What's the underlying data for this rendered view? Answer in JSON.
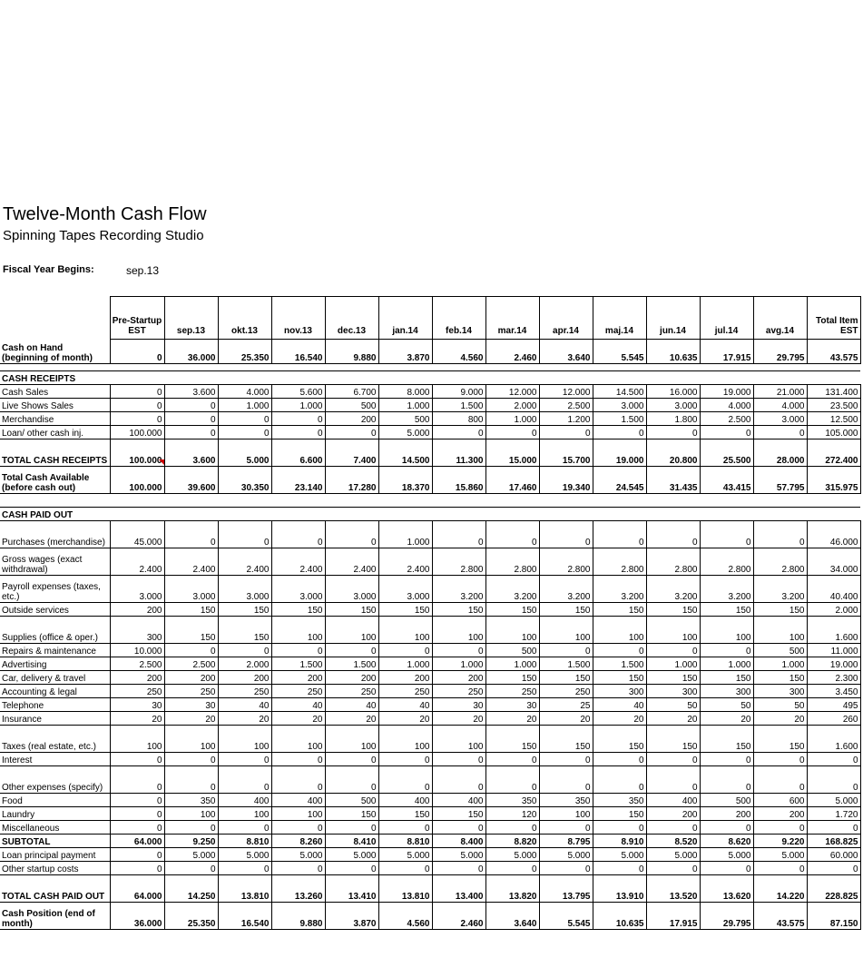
{
  "title": "Twelve-Month Cash Flow",
  "subtitle": "Spinning Tapes Recording Studio",
  "fiscal_year": {
    "label": "Fiscal Year Begins:",
    "value": "sep.13"
  },
  "columns": [
    "Pre-Startup EST",
    "sep.13",
    "okt.13",
    "nov.13",
    "dec.13",
    "jan.14",
    "feb.14",
    "mar.14",
    "apr.14",
    "maj.14",
    "jun.14",
    "jul.14",
    "avg.14",
    "Total Item EST"
  ],
  "rows": [
    {
      "type": "row",
      "label": "Cash on Hand (beginning of month)",
      "bold": true,
      "h": 27,
      "values": [
        "0",
        "36.000",
        "25.350",
        "16.540",
        "9.880",
        "3.870",
        "4.560",
        "2.460",
        "3.640",
        "5.545",
        "10.635",
        "17.915",
        "29.795",
        "43.575"
      ]
    },
    {
      "type": "blank",
      "h": 8
    },
    {
      "type": "section",
      "label": "CASH RECEIPTS",
      "h": 15
    },
    {
      "type": "row",
      "label": "Cash Sales",
      "h": 15,
      "values": [
        "0",
        "3.600",
        "4.000",
        "5.600",
        "6.700",
        "8.000",
        "9.000",
        "12.000",
        "12.000",
        "14.500",
        "16.000",
        "19.000",
        "21.000",
        "131.400"
      ]
    },
    {
      "type": "row",
      "label": "Live Shows Sales",
      "h": 15,
      "values": [
        "0",
        "0",
        "1.000",
        "1.000",
        "500",
        "1.000",
        "1.500",
        "2.000",
        "2.500",
        "3.000",
        "3.000",
        "4.000",
        "4.000",
        "23.500"
      ]
    },
    {
      "type": "row",
      "label": "Merchandise",
      "h": 15,
      "values": [
        "0",
        "0",
        "0",
        "0",
        "200",
        "500",
        "800",
        "1.000",
        "1.200",
        "1.500",
        "1.800",
        "2.500",
        "3.000",
        "12.500"
      ]
    },
    {
      "type": "row",
      "label": "Loan/ other cash inj.",
      "h": 15,
      "values": [
        "100.000",
        "0",
        "0",
        "0",
        "0",
        "5.000",
        "0",
        "0",
        "0",
        "0",
        "0",
        "0",
        "0",
        "105.000"
      ]
    },
    {
      "type": "row",
      "label": "TOTAL CASH RECEIPTS",
      "bold": true,
      "h": 30,
      "values": [
        "100.000",
        "3.600",
        "5.000",
        "6.600",
        "7.400",
        "14.500",
        "11.300",
        "15.000",
        "15.700",
        "19.000",
        "20.800",
        "25.500",
        "28.000",
        "272.400"
      ]
    },
    {
      "type": "row",
      "label": "Total Cash Available (before cash out)",
      "bold": true,
      "h": 30,
      "values": [
        "100.000",
        "39.600",
        "30.350",
        "23.140",
        "17.280",
        "18.370",
        "15.860",
        "17.460",
        "19.340",
        "24.545",
        "31.435",
        "43.415",
        "57.795",
        "315.975"
      ]
    },
    {
      "type": "blank",
      "h": 15
    },
    {
      "type": "section",
      "label": "CASH PAID OUT",
      "h": 15
    },
    {
      "type": "row",
      "label": "Purchases (merchandise)",
      "h": 30,
      "values": [
        "45.000",
        "0",
        "0",
        "0",
        "0",
        "1.000",
        "0",
        "0",
        "0",
        "0",
        "0",
        "0",
        "0",
        "46.000"
      ]
    },
    {
      "type": "row",
      "label": "Gross wages (exact withdrawal)",
      "h": 30,
      "values": [
        "2.400",
        "2.400",
        "2.400",
        "2.400",
        "2.400",
        "2.400",
        "2.800",
        "2.800",
        "2.800",
        "2.800",
        "2.800",
        "2.800",
        "2.800",
        "34.000"
      ]
    },
    {
      "type": "row",
      "label": "Payroll expenses (taxes, etc.)",
      "h": 30,
      "values": [
        "3.000",
        "3.000",
        "3.000",
        "3.000",
        "3.000",
        "3.000",
        "3.200",
        "3.200",
        "3.200",
        "3.200",
        "3.200",
        "3.200",
        "3.200",
        "40.400"
      ]
    },
    {
      "type": "row",
      "label": "Outside services",
      "h": 15,
      "values": [
        "200",
        "150",
        "150",
        "150",
        "150",
        "150",
        "150",
        "150",
        "150",
        "150",
        "150",
        "150",
        "150",
        "2.000"
      ]
    },
    {
      "type": "row",
      "label": "Supplies (office & oper.)",
      "h": 30,
      "values": [
        "300",
        "150",
        "150",
        "100",
        "100",
        "100",
        "100",
        "100",
        "100",
        "100",
        "100",
        "100",
        "100",
        "1.600"
      ]
    },
    {
      "type": "row",
      "label": "Repairs & maintenance",
      "h": 15,
      "values": [
        "10.000",
        "0",
        "0",
        "0",
        "0",
        "0",
        "0",
        "500",
        "0",
        "0",
        "0",
        "0",
        "500",
        "11.000"
      ]
    },
    {
      "type": "row",
      "label": "Advertising",
      "h": 15,
      "values": [
        "2.500",
        "2.500",
        "2.000",
        "1.500",
        "1.500",
        "1.000",
        "1.000",
        "1.000",
        "1.500",
        "1.500",
        "1.000",
        "1.000",
        "1.000",
        "19.000"
      ]
    },
    {
      "type": "row",
      "label": "Car, delivery & travel",
      "h": 15,
      "values": [
        "200",
        "200",
        "200",
        "200",
        "200",
        "200",
        "200",
        "150",
        "150",
        "150",
        "150",
        "150",
        "150",
        "2.300"
      ]
    },
    {
      "type": "row",
      "label": "Accounting & legal",
      "h": 15,
      "values": [
        "250",
        "250",
        "250",
        "250",
        "250",
        "250",
        "250",
        "250",
        "250",
        "300",
        "300",
        "300",
        "300",
        "3.450"
      ]
    },
    {
      "type": "row",
      "label": "Telephone",
      "h": 15,
      "values": [
        "30",
        "30",
        "40",
        "40",
        "40",
        "40",
        "30",
        "30",
        "25",
        "40",
        "50",
        "50",
        "50",
        "495"
      ]
    },
    {
      "type": "row",
      "label": "Insurance",
      "h": 15,
      "values": [
        "20",
        "20",
        "20",
        "20",
        "20",
        "20",
        "20",
        "20",
        "20",
        "20",
        "20",
        "20",
        "20",
        "260"
      ]
    },
    {
      "type": "row",
      "label": "Taxes (real estate, etc.)",
      "h": 30,
      "values": [
        "100",
        "100",
        "100",
        "100",
        "100",
        "100",
        "100",
        "150",
        "150",
        "150",
        "150",
        "150",
        "150",
        "1.600"
      ]
    },
    {
      "type": "row",
      "label": "Interest",
      "h": 15,
      "values": [
        "0",
        "0",
        "0",
        "0",
        "0",
        "0",
        "0",
        "0",
        "0",
        "0",
        "0",
        "0",
        "0",
        "0"
      ]
    },
    {
      "type": "row",
      "label": "Other expenses (specify)",
      "h": 30,
      "values": [
        "0",
        "0",
        "0",
        "0",
        "0",
        "0",
        "0",
        "0",
        "0",
        "0",
        "0",
        "0",
        "0",
        "0"
      ]
    },
    {
      "type": "row",
      "label": "Food",
      "h": 15,
      "values": [
        "0",
        "350",
        "400",
        "400",
        "500",
        "400",
        "400",
        "350",
        "350",
        "350",
        "400",
        "500",
        "600",
        "5.000"
      ]
    },
    {
      "type": "row",
      "label": "Laundry",
      "h": 15,
      "values": [
        "0",
        "100",
        "100",
        "100",
        "150",
        "150",
        "150",
        "120",
        "100",
        "150",
        "200",
        "200",
        "200",
        "1.720"
      ]
    },
    {
      "type": "row",
      "label": "Miscellaneous",
      "h": 15,
      "values": [
        "0",
        "0",
        "0",
        "0",
        "0",
        "0",
        "0",
        "0",
        "0",
        "0",
        "0",
        "0",
        "0",
        "0"
      ]
    },
    {
      "type": "row",
      "label": "SUBTOTAL",
      "bold": true,
      "h": 15,
      "values": [
        "64.000",
        "9.250",
        "8.810",
        "8.260",
        "8.410",
        "8.810",
        "8.400",
        "8.820",
        "8.795",
        "8.910",
        "8.520",
        "8.620",
        "9.220",
        "168.825"
      ]
    },
    {
      "type": "row",
      "label": "Loan principal payment",
      "h": 15,
      "values": [
        "0",
        "5.000",
        "5.000",
        "5.000",
        "5.000",
        "5.000",
        "5.000",
        "5.000",
        "5.000",
        "5.000",
        "5.000",
        "5.000",
        "5.000",
        "60.000"
      ]
    },
    {
      "type": "row",
      "label": "Other startup costs",
      "h": 15,
      "values": [
        "0",
        "0",
        "0",
        "0",
        "0",
        "0",
        "0",
        "0",
        "0",
        "0",
        "0",
        "0",
        "0",
        "0"
      ]
    },
    {
      "type": "row",
      "label": "TOTAL CASH PAID OUT",
      "bold": true,
      "h": 30,
      "values": [
        "64.000",
        "14.250",
        "13.810",
        "13.260",
        "13.410",
        "13.810",
        "13.400",
        "13.820",
        "13.795",
        "13.910",
        "13.520",
        "13.620",
        "14.220",
        "228.825"
      ]
    },
    {
      "type": "row",
      "label": "Cash Position (end of month)",
      "bold": true,
      "h": 30,
      "values": [
        "36.000",
        "25.350",
        "16.540",
        "9.880",
        "3.870",
        "4.560",
        "2.460",
        "3.640",
        "5.545",
        "10.635",
        "17.915",
        "29.795",
        "43.575",
        "87.150"
      ]
    }
  ]
}
